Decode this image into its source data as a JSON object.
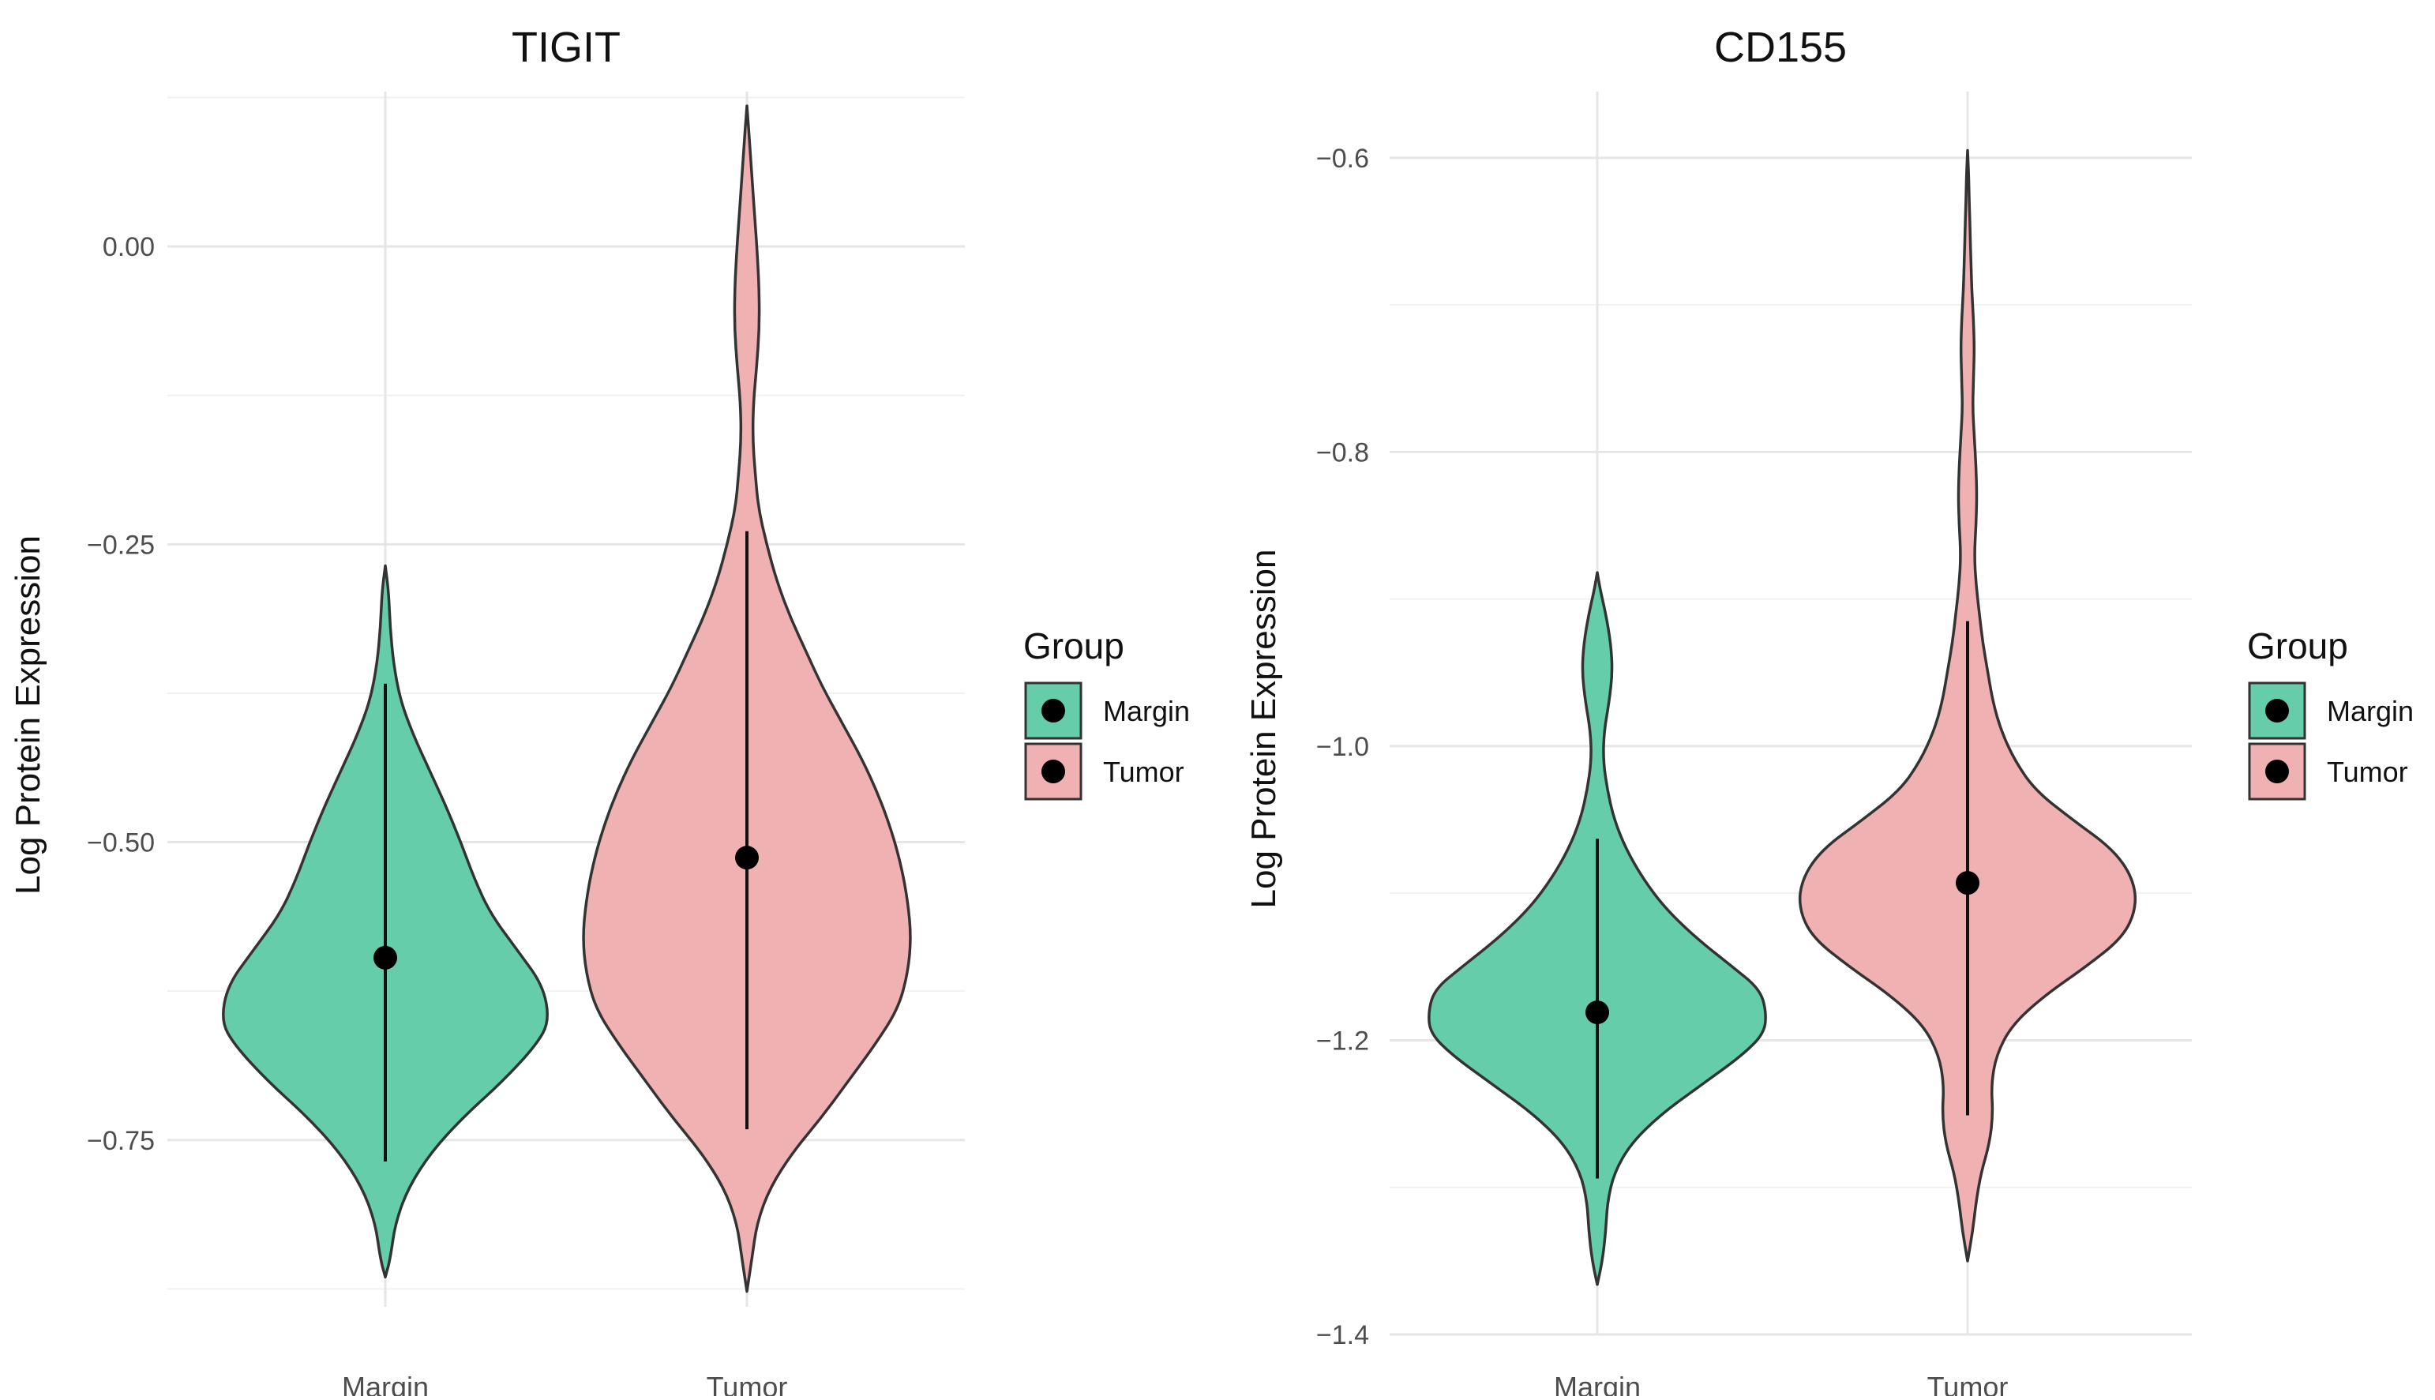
{
  "chart_data": [
    {
      "type": "violin",
      "title": "TIGIT",
      "xlabel": "",
      "ylabel": "Log Protein Expression",
      "categories": [
        "Margin",
        "Tumor"
      ],
      "yticks": [
        0.0,
        -0.25,
        -0.5,
        -0.75
      ],
      "ytick_labels": [
        "0.00",
        "-0.25",
        "-0.50",
        "-0.75"
      ],
      "ylim": [
        -0.89,
        0.13
      ],
      "grid": true,
      "legend": {
        "title": "Group",
        "position": "right",
        "entries": [
          "Margin",
          "Tumor"
        ]
      },
      "series": [
        {
          "name": "Margin",
          "color": "#66CDAA",
          "mean": -0.597,
          "range_line": [
            -0.768,
            -0.367
          ],
          "y_min": -0.865,
          "y_max": -0.268,
          "density_profile": [
            [
              -0.865,
              0
            ],
            [
              -0.85,
              0.03
            ],
            [
              -0.82,
              0.06
            ],
            [
              -0.79,
              0.14
            ],
            [
              -0.76,
              0.28
            ],
            [
              -0.73,
              0.48
            ],
            [
              -0.7,
              0.72
            ],
            [
              -0.67,
              0.92
            ],
            [
              -0.65,
              1.0
            ],
            [
              -0.62,
              0.96
            ],
            [
              -0.59,
              0.8
            ],
            [
              -0.56,
              0.64
            ],
            [
              -0.53,
              0.54
            ],
            [
              -0.5,
              0.46
            ],
            [
              -0.47,
              0.37
            ],
            [
              -0.44,
              0.27
            ],
            [
              -0.41,
              0.17
            ],
            [
              -0.38,
              0.09
            ],
            [
              -0.35,
              0.05
            ],
            [
              -0.32,
              0.03
            ],
            [
              -0.29,
              0.02
            ],
            [
              -0.268,
              0
            ]
          ]
        },
        {
          "name": "Tumor",
          "color": "#EFB1B1",
          "mean": -0.513,
          "range_line": [
            -0.741,
            -0.239
          ],
          "y_min": -0.877,
          "y_max": 0.118,
          "density_profile": [
            [
              -0.877,
              0
            ],
            [
              -0.85,
              0.03
            ],
            [
              -0.82,
              0.06
            ],
            [
              -0.79,
              0.14
            ],
            [
              -0.76,
              0.28
            ],
            [
              -0.73,
              0.46
            ],
            [
              -0.7,
              0.62
            ],
            [
              -0.67,
              0.78
            ],
            [
              -0.64,
              0.92
            ],
            [
              -0.61,
              0.98
            ],
            [
              -0.58,
              1.0
            ],
            [
              -0.55,
              0.98
            ],
            [
              -0.52,
              0.94
            ],
            [
              -0.49,
              0.88
            ],
            [
              -0.46,
              0.8
            ],
            [
              -0.43,
              0.7
            ],
            [
              -0.4,
              0.58
            ],
            [
              -0.37,
              0.46
            ],
            [
              -0.34,
              0.36
            ],
            [
              -0.31,
              0.26
            ],
            [
              -0.28,
              0.18
            ],
            [
              -0.25,
              0.12
            ],
            [
              -0.22,
              0.07
            ],
            [
              -0.19,
              0.05
            ],
            [
              -0.16,
              0.035
            ],
            [
              -0.13,
              0.04
            ],
            [
              -0.1,
              0.06
            ],
            [
              -0.07,
              0.075
            ],
            [
              -0.04,
              0.075
            ],
            [
              -0.01,
              0.065
            ],
            [
              0.02,
              0.05
            ],
            [
              0.05,
              0.035
            ],
            [
              0.08,
              0.02
            ],
            [
              0.1,
              0.01
            ],
            [
              0.118,
              0
            ]
          ]
        }
      ]
    },
    {
      "type": "violin",
      "title": "CD155",
      "xlabel": "",
      "ylabel": "Log Protein Expression",
      "categories": [
        "Margin",
        "Tumor"
      ],
      "yticks": [
        -0.6,
        -0.8,
        -1.0,
        -1.2,
        -1.4
      ],
      "ytick_labels": [
        "-0.6",
        "-0.8",
        "-1.0",
        "-1.2",
        "-1.4"
      ],
      "ylim": [
        -1.4,
        -0.555
      ],
      "grid": true,
      "legend": {
        "title": "Group",
        "position": "right",
        "entries": [
          "Margin",
          "Tumor"
        ]
      },
      "series": [
        {
          "name": "Margin",
          "color": "#66CDAA",
          "mean": -1.181,
          "range_line": [
            -1.294,
            -1.063
          ],
          "y_min": -1.366,
          "y_max": -0.882,
          "density_profile": [
            [
              -1.366,
              0
            ],
            [
              -1.35,
              0.03
            ],
            [
              -1.33,
              0.05
            ],
            [
              -1.31,
              0.06
            ],
            [
              -1.29,
              0.1
            ],
            [
              -1.27,
              0.2
            ],
            [
              -1.25,
              0.38
            ],
            [
              -1.23,
              0.62
            ],
            [
              -1.21,
              0.86
            ],
            [
              -1.195,
              0.99
            ],
            [
              -1.18,
              1.0
            ],
            [
              -1.165,
              0.96
            ],
            [
              -1.15,
              0.8
            ],
            [
              -1.13,
              0.58
            ],
            [
              -1.11,
              0.4
            ],
            [
              -1.09,
              0.27
            ],
            [
              -1.07,
              0.17
            ],
            [
              -1.05,
              0.1
            ],
            [
              -1.03,
              0.06
            ],
            [
              -1.01,
              0.035
            ],
            [
              -0.99,
              0.04
            ],
            [
              -0.97,
              0.07
            ],
            [
              -0.95,
              0.09
            ],
            [
              -0.93,
              0.08
            ],
            [
              -0.91,
              0.05
            ],
            [
              -0.895,
              0.02
            ],
            [
              -0.882,
              0
            ]
          ]
        },
        {
          "name": "Tumor",
          "color": "#EFB1B1",
          "mean": -1.093,
          "range_line": [
            -1.251,
            -0.915
          ],
          "y_min": -1.35,
          "y_max": -0.595,
          "density_profile": [
            [
              -1.35,
              0
            ],
            [
              -1.33,
              0.03
            ],
            [
              -1.31,
              0.05
            ],
            [
              -1.29,
              0.08
            ],
            [
              -1.27,
              0.13
            ],
            [
              -1.25,
              0.15
            ],
            [
              -1.23,
              0.14
            ],
            [
              -1.21,
              0.17
            ],
            [
              -1.19,
              0.26
            ],
            [
              -1.17,
              0.45
            ],
            [
              -1.15,
              0.7
            ],
            [
              -1.13,
              0.92
            ],
            [
              -1.11,
              1.0
            ],
            [
              -1.09,
              0.98
            ],
            [
              -1.07,
              0.86
            ],
            [
              -1.05,
              0.62
            ],
            [
              -1.03,
              0.4
            ],
            [
              -1.01,
              0.28
            ],
            [
              -0.99,
              0.2
            ],
            [
              -0.97,
              0.15
            ],
            [
              -0.95,
              0.12
            ],
            [
              -0.93,
              0.09
            ],
            [
              -0.91,
              0.07
            ],
            [
              -0.89,
              0.05
            ],
            [
              -0.87,
              0.04
            ],
            [
              -0.85,
              0.05
            ],
            [
              -0.83,
              0.055
            ],
            [
              -0.81,
              0.05
            ],
            [
              -0.79,
              0.04
            ],
            [
              -0.77,
              0.03
            ],
            [
              -0.75,
              0.035
            ],
            [
              -0.73,
              0.04
            ],
            [
              -0.71,
              0.035
            ],
            [
              -0.69,
              0.025
            ],
            [
              -0.67,
              0.02
            ],
            [
              -0.65,
              0.015
            ],
            [
              -0.63,
              0.01
            ],
            [
              -0.61,
              0.006
            ],
            [
              -0.595,
              0
            ]
          ]
        }
      ]
    }
  ]
}
